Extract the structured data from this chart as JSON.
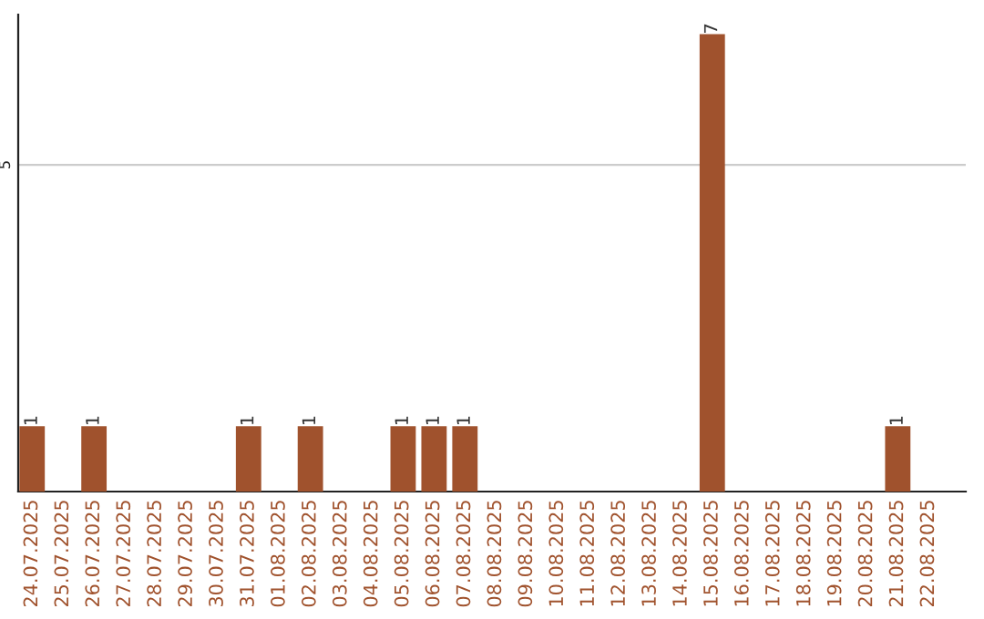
{
  "chart_data": {
    "type": "bar",
    "categories": [
      "24.07.2025",
      "25.07.2025",
      "26.07.2025",
      "27.07.2025",
      "28.07.2025",
      "29.07.2025",
      "30.07.2025",
      "31.07.2025",
      "01.08.2025",
      "02.08.2025",
      "03.08.2025",
      "04.08.2025",
      "05.08.2025",
      "06.08.2025",
      "07.08.2025",
      "08.08.2025",
      "09.08.2025",
      "10.08.2025",
      "11.08.2025",
      "12.08.2025",
      "13.08.2025",
      "14.08.2025",
      "15.08.2025",
      "16.08.2025",
      "17.08.2025",
      "18.08.2025",
      "19.08.2025",
      "20.08.2025",
      "21.08.2025",
      "22.08.2025"
    ],
    "values": [
      1,
      0,
      1,
      0,
      0,
      0,
      0,
      1,
      0,
      1,
      0,
      0,
      1,
      1,
      1,
      0,
      0,
      0,
      0,
      0,
      0,
      0,
      7,
      0,
      0,
      0,
      0,
      0,
      1,
      0
    ],
    "value_labels": [
      "1",
      null,
      "1",
      null,
      null,
      null,
      null,
      "1",
      null,
      "1",
      null,
      null,
      "1",
      "1",
      "1",
      null,
      null,
      null,
      null,
      null,
      null,
      null,
      "7",
      null,
      null,
      null,
      null,
      null,
      "1",
      null
    ],
    "color": "#a0522d",
    "ylim": [
      0,
      7.3
    ],
    "yticks": [
      5
    ],
    "grid": "y",
    "legend": false
  }
}
